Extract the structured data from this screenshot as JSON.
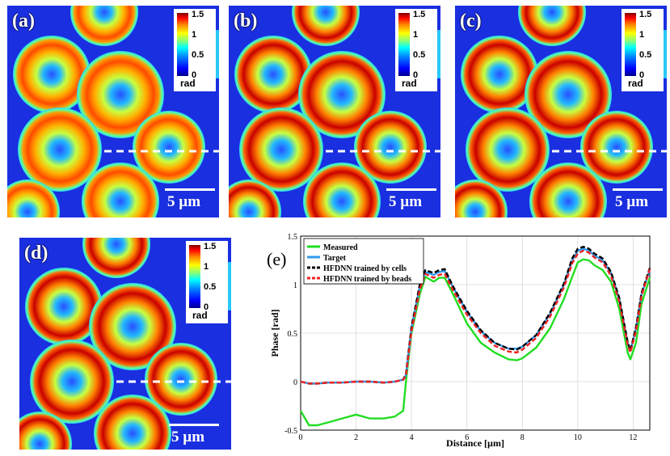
{
  "panels": [
    {
      "id": "a",
      "label": "(a)",
      "scale_bar": "5 µm"
    },
    {
      "id": "b",
      "label": "(b)",
      "scale_bar": "5 µm"
    },
    {
      "id": "c",
      "label": "(c)",
      "scale_bar": "5 µm"
    },
    {
      "id": "d",
      "label": "(d)",
      "scale_bar": "5 µm"
    }
  ],
  "colorbar": {
    "ticks": [
      "1.5",
      "1",
      "0.5",
      "0"
    ],
    "unit": "rad"
  },
  "colors": {
    "measured": "#22dd22",
    "target": "#3399ee",
    "hfdnn_cells": "#000000",
    "hfdnn_beads": "#ee2222",
    "background_phase": "#1a2fe0"
  },
  "chart_data": {
    "type": "line",
    "label": "(e)",
    "title": "",
    "xlabel": "Distance [µm]",
    "ylabel": "Phase [rad]",
    "xlim": [
      0,
      12.6
    ],
    "ylim": [
      -0.5,
      1.5
    ],
    "xticks": [
      "0",
      "2",
      "4",
      "6",
      "8",
      "10",
      "12"
    ],
    "yticks": [
      "-0.5",
      "0",
      "0.5",
      "1",
      "1.5"
    ],
    "grid": true,
    "legend": "top-left",
    "x": [
      0,
      0.3,
      0.6,
      1.0,
      1.5,
      2.0,
      2.5,
      3.0,
      3.4,
      3.7,
      3.8,
      4.0,
      4.3,
      4.5,
      4.8,
      5.0,
      5.2,
      5.5,
      6.0,
      6.5,
      7.0,
      7.5,
      7.8,
      8.0,
      8.5,
      9.0,
      9.5,
      9.8,
      10.0,
      10.2,
      10.4,
      10.6,
      10.9,
      11.2,
      11.5,
      11.8,
      11.9,
      12.1,
      12.3,
      12.6
    ],
    "series": [
      {
        "name": "Measured",
        "values": [
          -0.3,
          -0.45,
          -0.45,
          -0.42,
          -0.38,
          -0.34,
          -0.38,
          -0.38,
          -0.36,
          -0.3,
          0.0,
          0.5,
          0.9,
          1.08,
          1.03,
          1.07,
          1.07,
          0.9,
          0.6,
          0.4,
          0.3,
          0.23,
          0.22,
          0.24,
          0.35,
          0.55,
          0.85,
          1.08,
          1.23,
          1.26,
          1.25,
          1.2,
          1.15,
          1.03,
          0.75,
          0.3,
          0.23,
          0.4,
          0.8,
          1.07
        ]
      },
      {
        "name": "Target",
        "values": [
          0.0,
          -0.02,
          -0.02,
          -0.01,
          -0.01,
          0.0,
          0.0,
          -0.01,
          0.0,
          0.02,
          0.07,
          0.55,
          0.98,
          1.13,
          1.1,
          1.13,
          1.14,
          0.97,
          0.72,
          0.52,
          0.4,
          0.34,
          0.34,
          0.36,
          0.48,
          0.7,
          1.0,
          1.25,
          1.35,
          1.37,
          1.35,
          1.3,
          1.25,
          1.12,
          0.85,
          0.4,
          0.32,
          0.55,
          0.9,
          1.15
        ]
      },
      {
        "name": "HFDNN trained by cells",
        "values": [
          0.0,
          -0.02,
          -0.02,
          -0.01,
          -0.01,
          0.0,
          0.0,
          -0.01,
          0.0,
          0.02,
          0.08,
          0.56,
          1.0,
          1.15,
          1.12,
          1.15,
          1.16,
          0.98,
          0.73,
          0.53,
          0.4,
          0.34,
          0.33,
          0.36,
          0.48,
          0.71,
          1.01,
          1.27,
          1.37,
          1.39,
          1.37,
          1.32,
          1.27,
          1.13,
          0.86,
          0.41,
          0.32,
          0.56,
          0.91,
          1.17
        ]
      },
      {
        "name": "HFDNN trained by beads",
        "values": [
          0.0,
          -0.02,
          -0.02,
          -0.01,
          -0.01,
          0.0,
          0.0,
          -0.01,
          0.0,
          0.02,
          0.06,
          0.52,
          0.95,
          1.11,
          1.07,
          1.1,
          1.11,
          0.94,
          0.69,
          0.5,
          0.37,
          0.31,
          0.3,
          0.33,
          0.45,
          0.67,
          0.97,
          1.22,
          1.32,
          1.35,
          1.33,
          1.28,
          1.23,
          1.09,
          0.82,
          0.38,
          0.3,
          0.52,
          0.88,
          1.16
        ]
      }
    ]
  }
}
